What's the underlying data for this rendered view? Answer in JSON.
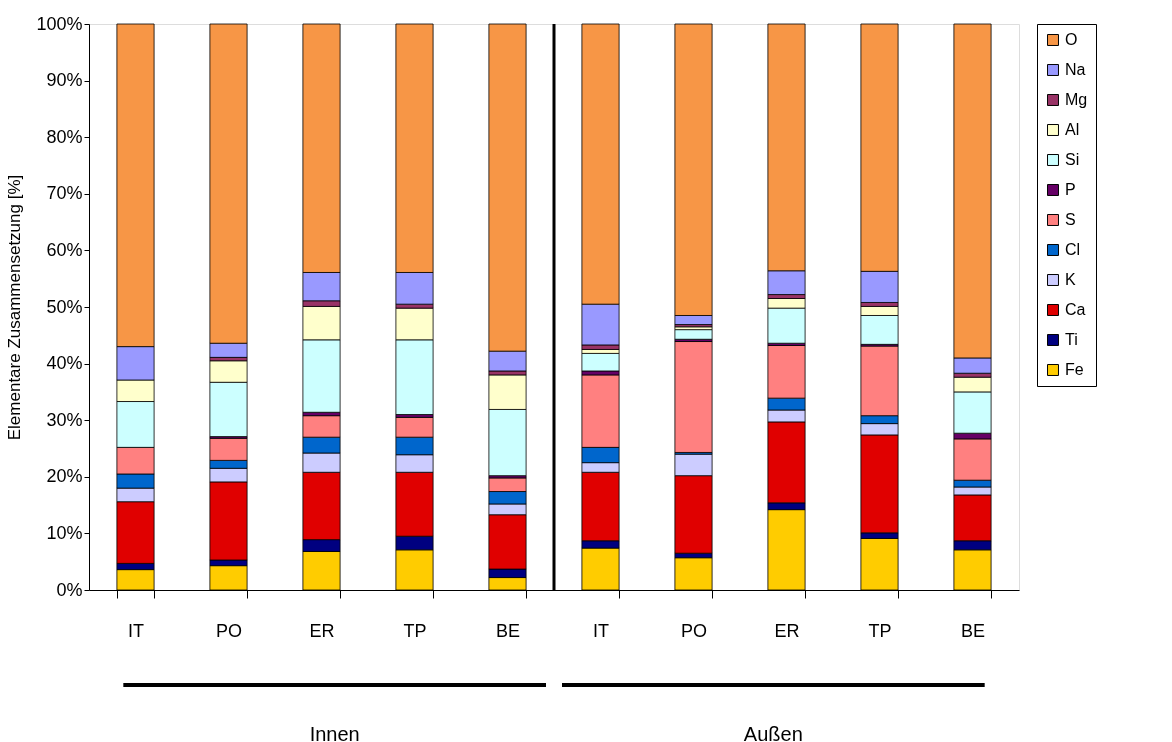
{
  "chart_data": {
    "type": "bar",
    "stacked": true,
    "ylabel": "Elementare Zusammensetzung  [%]",
    "categories": [
      "IT",
      "PO",
      "ER",
      "TP",
      "BE",
      "IT",
      "PO",
      "ER",
      "TP",
      "BE"
    ],
    "ylim": [
      0,
      100
    ],
    "yticks": [
      {
        "value": 0,
        "label": "0%"
      },
      {
        "value": 10,
        "label": "10%"
      },
      {
        "value": 20,
        "label": "20%"
      },
      {
        "value": 30,
        "label": "30%"
      },
      {
        "value": 40,
        "label": "40%"
      },
      {
        "value": 50,
        "label": "50%"
      },
      {
        "value": 60,
        "label": "60%"
      },
      {
        "value": 70,
        "label": "70%"
      },
      {
        "value": 80,
        "label": "80%"
      },
      {
        "value": 90,
        "label": "90%"
      },
      {
        "value": 100,
        "label": "100%"
      }
    ],
    "series": [
      {
        "name": "Fe",
        "color": "#ffcc00",
        "values": [
          3.6,
          4.3,
          6.8,
          7.1,
          2.2,
          7.4,
          5.7,
          14.2,
          9.1,
          7.1
        ]
      },
      {
        "name": "Ti",
        "color": "#000080",
        "values": [
          1.1,
          1.0,
          2.1,
          2.4,
          1.5,
          1.3,
          0.8,
          1.2,
          1.0,
          1.6
        ]
      },
      {
        "name": "Ca",
        "color": "#e00000",
        "values": [
          10.9,
          13.8,
          11.9,
          11.3,
          9.6,
          12.1,
          13.7,
          14.3,
          17.3,
          8.1
        ]
      },
      {
        "name": "K",
        "color": "#ccccff",
        "values": [
          2.4,
          2.4,
          3.4,
          3.1,
          1.9,
          1.7,
          3.8,
          2.1,
          2.0,
          1.4
        ]
      },
      {
        "name": "Cl",
        "color": "#0066cc",
        "values": [
          2.5,
          1.4,
          2.8,
          3.1,
          2.2,
          2.7,
          0.3,
          2.1,
          1.4,
          1.2
        ]
      },
      {
        "name": "S",
        "color": "#ff8080",
        "values": [
          4.7,
          3.9,
          3.8,
          3.5,
          2.4,
          12.8,
          19.6,
          9.3,
          12.3,
          7.3
        ]
      },
      {
        "name": "P",
        "color": "#660066",
        "values": [
          null,
          0.3,
          0.6,
          0.5,
          0.4,
          0.7,
          0.4,
          0.4,
          0.3,
          1.0
        ]
      },
      {
        "name": "Si",
        "color": "#ccffff",
        "values": [
          8.1,
          9.6,
          12.8,
          13.2,
          11.7,
          3.1,
          1.7,
          6.2,
          5.1,
          7.3
        ]
      },
      {
        "name": "Al",
        "color": "#ffffcc",
        "values": [
          3.8,
          3.8,
          5.9,
          5.6,
          6.1,
          0.7,
          0.5,
          1.7,
          1.6,
          2.6
        ]
      },
      {
        "name": "Mg",
        "color": "#993366",
        "values": [
          null,
          0.6,
          1.0,
          0.7,
          0.7,
          0.8,
          0.4,
          0.7,
          0.7,
          0.7
        ]
      },
      {
        "name": "Na",
        "color": "#9999ff",
        "values": [
          5.9,
          2.5,
          5.0,
          5.6,
          3.5,
          7.2,
          1.6,
          4.2,
          5.5,
          2.7
        ]
      },
      {
        "name": "O",
        "color": "#f79646",
        "values": [
          57.0,
          56.4,
          43.9,
          43.9,
          57.8,
          49.5,
          51.5,
          43.6,
          43.7,
          59.0
        ]
      }
    ],
    "legend": "right",
    "grid": false,
    "annotations": [
      "Innen",
      "Außen"
    ]
  }
}
